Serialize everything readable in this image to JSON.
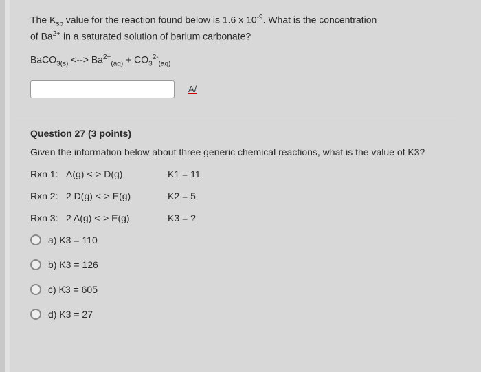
{
  "q26": {
    "line1_pre": "The K",
    "line1_sub": "sp",
    "line1_mid": " value for the reaction found below is 1.6 x 10",
    "line1_sup": "-9",
    "line1_post": ". What is the concentration",
    "line2_pre": "of Ba",
    "line2_sup": "2+",
    "line2_post": " in a saturated solution of barium carbonate?",
    "eq_a": "BaCO",
    "eq_a_sub": "3(s)",
    "eq_arrow": "  <-->  ",
    "eq_b": "Ba",
    "eq_b_sup": "2+",
    "eq_b_sub": "(aq)",
    "eq_plus": "  +  ",
    "eq_c": "CO",
    "eq_c_sub1": "3",
    "eq_c_sup": "2-",
    "eq_c_sub2": "(aq)",
    "input_value": "",
    "spellcheck_label": "A/"
  },
  "q27": {
    "header": "Question 27 (3 points)",
    "prompt": "Given the information below about three generic chemical reactions, what is the value of K3?",
    "rxns": [
      {
        "label": "Rxn 1:",
        "eq": "A(g)  <->  D(g)",
        "k": "K1 = 11"
      },
      {
        "label": "Rxn 2:",
        "eq": "2 D(g)  <->  E(g)",
        "k": "K2 = 5"
      },
      {
        "label": "Rxn 3:",
        "eq": "2 A(g)  <->  E(g)",
        "k": "K3 = ?"
      }
    ],
    "options": [
      {
        "label": "a) K3 = 110"
      },
      {
        "label": "b) K3 = 126"
      },
      {
        "label": "c) K3 = 605"
      },
      {
        "label": "d) K3 = 27"
      }
    ]
  }
}
